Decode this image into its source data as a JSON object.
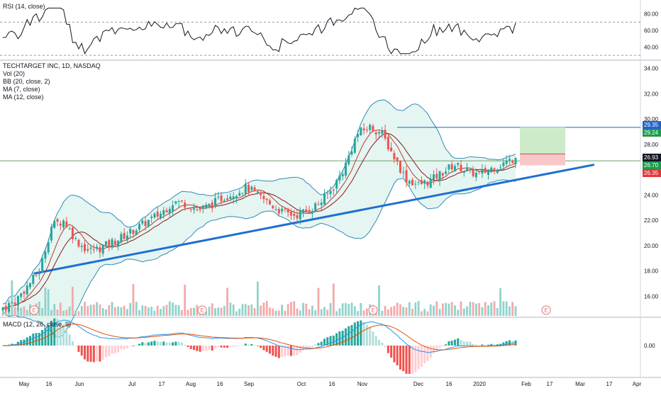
{
  "rsi": {
    "label": "RSI (14, close)",
    "y_ticks": [
      "80.00",
      "60.00",
      "40.00"
    ],
    "y_tick_values": [
      80,
      60,
      40
    ],
    "bands": [
      70,
      30
    ],
    "ylim": [
      25,
      95
    ]
  },
  "price": {
    "symbol": "TECHTARGET INC, 1D, NASDAQ",
    "indicators": [
      "Vol (20)",
      "BB (20, close, 2)",
      "MA (7, close)",
      "MA (12, close)"
    ],
    "y_ticks": [
      "34.00",
      "32.00",
      "30.00",
      "28.00",
      "26.00",
      "24.00",
      "22.00",
      "20.00",
      "18.00",
      "16.00"
    ],
    "y_tick_values": [
      34,
      32,
      30,
      28,
      26,
      24,
      22,
      20,
      18,
      16
    ],
    "ylim": [
      14.4,
      34.6
    ],
    "price_badges": [
      {
        "text": "29.35",
        "value": 29.35,
        "color": "#1e63c9"
      },
      {
        "text": "29.24",
        "value": 29.24,
        "color": "#1f9a4a"
      },
      {
        "text": "26.93",
        "value": 26.93,
        "color": "#131722"
      },
      {
        "text": "26.70",
        "value": 26.7,
        "color": "#1f9a4a"
      },
      {
        "text": "26.35",
        "value": 26.35,
        "color": "#e3373a"
      }
    ],
    "earnings_marker": "E"
  },
  "macd": {
    "label": "MACD (12, 26, close, 9)",
    "y_ticks": [
      "0.00"
    ],
    "y_tick_values": [
      0
    ]
  },
  "x_axis": {
    "labels": [
      "May",
      "16",
      "Jun",
      "Jul",
      "17",
      "Aug",
      "16",
      "Sep",
      "Oct",
      "16",
      "Nov",
      "Dec",
      "16",
      "2020",
      "Feb",
      "17",
      "Mar",
      "17",
      "Apr"
    ]
  },
  "colors": {
    "up": "#26a69a",
    "down": "#ef5350",
    "bb_band": "#2e8bb5",
    "bb_fill": "#e0f3f0",
    "ma7": "#c0392b",
    "ma12": "#8b1a1a",
    "trendline": "#1e6fd0",
    "rsi_line": "#131722",
    "macd_line": "#2196f3",
    "signal_line": "#e65100",
    "target_zone": "#cdebc8",
    "stop_zone": "#f8c7c7"
  },
  "chart_data": {
    "type": "candlestick",
    "title": "TECHTARGET INC, 1D, NASDAQ",
    "x": [
      "May",
      "16",
      "Jun",
      "Jul",
      "17",
      "Aug",
      "16",
      "Sep",
      "Oct",
      "16",
      "Nov",
      "Dec",
      "16",
      "2020",
      "Feb",
      "17",
      "Mar",
      "17",
      "Apr"
    ],
    "ylim": [
      14.4,
      34.6
    ],
    "approx_closes": [
      15.1,
      15.6,
      16.8,
      18.0,
      21.6,
      22.0,
      20.4,
      19.6,
      19.8,
      20.3,
      20.8,
      21.4,
      22.0,
      22.6,
      23.5,
      23.3,
      22.8,
      23.2,
      23.8,
      24.2,
      24.6,
      23.9,
      23.2,
      22.6,
      22.4,
      22.8,
      23.4,
      24.5,
      26.2,
      28.8,
      29.4,
      28.9,
      27.1,
      25.3,
      24.8,
      25.1,
      25.8,
      26.4,
      25.9,
      25.6,
      26.1,
      26.5,
      26.93
    ],
    "trendline": {
      "start": 17.8,
      "end": 26.4
    },
    "target_level": 29.35,
    "entry_level": 26.7,
    "stop_level": 26.35
  }
}
